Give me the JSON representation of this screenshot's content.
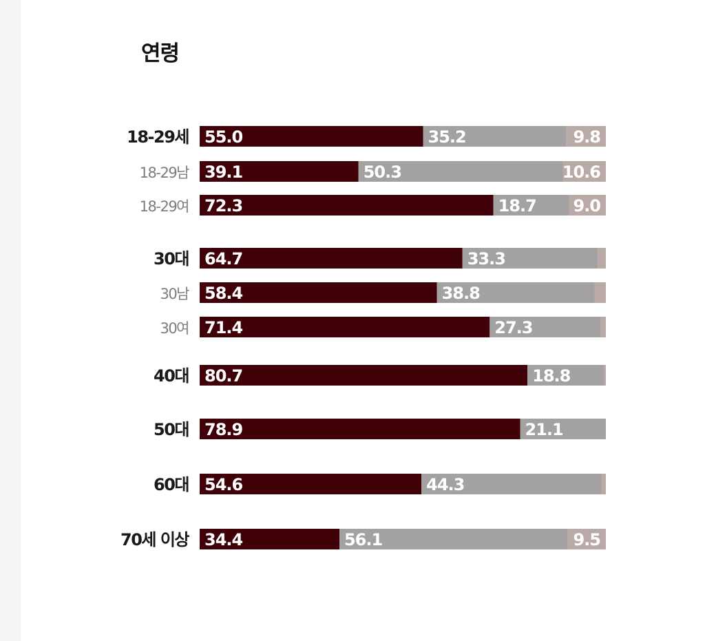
{
  "title": "연령",
  "chart_data": {
    "type": "bar",
    "orientation": "horizontal",
    "stacked": true,
    "normalized": true,
    "title": "연령",
    "grid": false,
    "legend": "none",
    "xlim": [
      0,
      100
    ],
    "colors": {
      "first": "#3f0007",
      "second": "#a3a1a2",
      "third": "#b9a9a7",
      "bold_label": "#1a1a1a",
      "light_label": "#7d7d7d"
    },
    "rows": [
      {
        "label": "18-29세",
        "bold": true,
        "values": [
          55.0,
          35.2,
          9.8
        ],
        "labels": [
          "55.0",
          "35.2",
          "9.8"
        ]
      },
      {
        "label": "18-29남",
        "bold": false,
        "values": [
          39.1,
          50.3,
          10.6
        ],
        "labels": [
          "39.1",
          "50.3",
          "10.6"
        ]
      },
      {
        "label": "18-29여",
        "bold": false,
        "values": [
          72.3,
          18.7,
          9.0
        ],
        "labels": [
          "72.3",
          "18.7",
          "9.0"
        ]
      },
      {
        "label": "30대",
        "bold": true,
        "values": [
          64.7,
          33.3,
          2.0
        ],
        "labels": [
          "64.7",
          "33.3",
          ""
        ]
      },
      {
        "label": "30남",
        "bold": false,
        "values": [
          58.4,
          38.8,
          2.8
        ],
        "labels": [
          "58.4",
          "38.8",
          ""
        ]
      },
      {
        "label": "30여",
        "bold": false,
        "values": [
          71.4,
          27.3,
          1.3
        ],
        "labels": [
          "71.4",
          "27.3",
          ""
        ]
      },
      {
        "label": "40대",
        "bold": true,
        "values": [
          80.7,
          18.8,
          0.5
        ],
        "labels": [
          "80.7",
          "18.8",
          ""
        ]
      },
      {
        "label": "50대",
        "bold": true,
        "values": [
          78.9,
          21.1
        ],
        "labels": [
          "78.9",
          "21.1"
        ]
      },
      {
        "label": "60대",
        "bold": true,
        "values": [
          54.6,
          44.3,
          1.1
        ],
        "labels": [
          "54.6",
          "44.3",
          ""
        ]
      },
      {
        "label": "70세 이상",
        "bold": true,
        "values": [
          34.4,
          56.1,
          9.5
        ],
        "labels": [
          "34.4",
          "56.1",
          "9.5"
        ]
      }
    ]
  }
}
